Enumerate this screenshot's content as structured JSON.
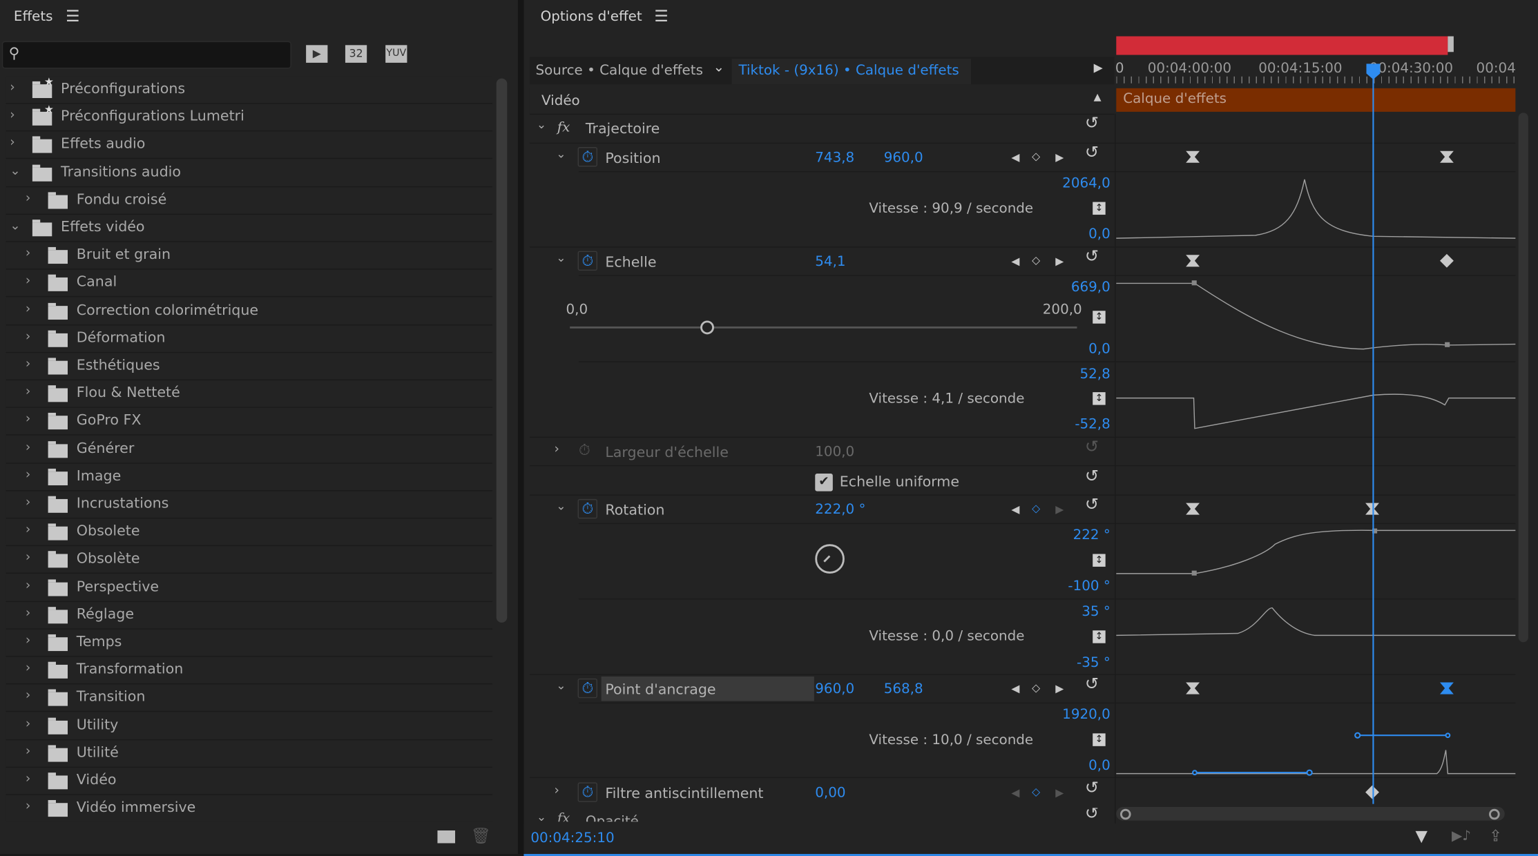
{
  "effects_panel": {
    "title": "Effets",
    "search": {
      "value": "",
      "placeholder": ""
    },
    "toolbar_icons": [
      "accelerated-effects-icon",
      "32-bit-icon",
      "yuv-icon"
    ],
    "toolbar_labels": [
      "",
      "32",
      "YUV"
    ],
    "items": [
      {
        "label": "Préconfigurations",
        "level": 0,
        "expanded": false,
        "icon": "preset-folder"
      },
      {
        "label": "Préconfigurations Lumetri",
        "level": 0,
        "expanded": false,
        "icon": "preset-folder"
      },
      {
        "label": "Effets audio",
        "level": 0,
        "expanded": false,
        "icon": "folder"
      },
      {
        "label": "Transitions audio",
        "level": 0,
        "expanded": true,
        "icon": "folder"
      },
      {
        "label": "Fondu croisé",
        "level": 1,
        "expanded": false,
        "icon": "folder"
      },
      {
        "label": "Effets vidéo",
        "level": 0,
        "expanded": true,
        "icon": "folder"
      },
      {
        "label": "Bruit et grain",
        "level": 1,
        "expanded": false,
        "icon": "folder"
      },
      {
        "label": "Canal",
        "level": 1,
        "expanded": false,
        "icon": "folder"
      },
      {
        "label": "Correction colorimétrique",
        "level": 1,
        "expanded": false,
        "icon": "folder"
      },
      {
        "label": "Déformation",
        "level": 1,
        "expanded": false,
        "icon": "folder"
      },
      {
        "label": "Esthétiques",
        "level": 1,
        "expanded": false,
        "icon": "folder"
      },
      {
        "label": "Flou & Netteté",
        "level": 1,
        "expanded": false,
        "icon": "folder"
      },
      {
        "label": "GoPro FX",
        "level": 1,
        "expanded": false,
        "icon": "folder"
      },
      {
        "label": "Générer",
        "level": 1,
        "expanded": false,
        "icon": "folder"
      },
      {
        "label": "Image",
        "level": 1,
        "expanded": false,
        "icon": "folder"
      },
      {
        "label": "Incrustations",
        "level": 1,
        "expanded": false,
        "icon": "folder"
      },
      {
        "label": "Obsolete",
        "level": 1,
        "expanded": false,
        "icon": "folder"
      },
      {
        "label": "Obsolète",
        "level": 1,
        "expanded": false,
        "icon": "folder"
      },
      {
        "label": "Perspective",
        "level": 1,
        "expanded": false,
        "icon": "folder"
      },
      {
        "label": "Réglage",
        "level": 1,
        "expanded": false,
        "icon": "folder"
      },
      {
        "label": "Temps",
        "level": 1,
        "expanded": false,
        "icon": "folder"
      },
      {
        "label": "Transformation",
        "level": 1,
        "expanded": false,
        "icon": "folder"
      },
      {
        "label": "Transition",
        "level": 1,
        "expanded": false,
        "icon": "folder"
      },
      {
        "label": "Utility",
        "level": 1,
        "expanded": false,
        "icon": "folder"
      },
      {
        "label": "Utilité",
        "level": 1,
        "expanded": false,
        "icon": "folder"
      },
      {
        "label": "Vidéo",
        "level": 1,
        "expanded": false,
        "icon": "folder"
      },
      {
        "label": "Vidéo immersive",
        "level": 1,
        "expanded": false,
        "icon": "folder"
      }
    ]
  },
  "effect_controls": {
    "title": "Options d'effet",
    "source": "Source • Calque d'effets",
    "sequence": "Tiktok - (9x16) • Calque d'effets",
    "section": "Vidéo",
    "effect_name": "Trajectoire",
    "position": {
      "label": "Position",
      "x": "743,8",
      "y": "960,0",
      "max": "2064,0",
      "min": "0,0",
      "speed": "Vitesse : 90,9 / seconde"
    },
    "scale": {
      "label": "Echelle",
      "value": "54,1",
      "max": "669,0",
      "min": "0,0",
      "slider_min": "0,0",
      "slider_max": "200,0",
      "slider_value": 54.1,
      "speed_max": "52,8",
      "speed_min": "-52,8",
      "speed": "Vitesse : 4,1 / seconde"
    },
    "scale_width": {
      "label": "Largeur d'échelle",
      "value": "100,0"
    },
    "uniform_scale": {
      "label": "Echelle uniforme",
      "checked": true
    },
    "rotation": {
      "label": "Rotation",
      "value": "222,0 °",
      "max": "222 °",
      "min": "-100 °",
      "speed_max": "35 °",
      "speed_min": "-35 °",
      "speed": "Vitesse : 0,0 / seconde"
    },
    "anchor": {
      "label": "Point d'ancrage",
      "x": "960,0",
      "y": "568,8",
      "max": "1920,0",
      "min": "0,0",
      "speed": "Vitesse : 10,0 / seconde"
    },
    "flicker": {
      "label": "Filtre antiscintillement",
      "value": "0,00"
    },
    "opacity": {
      "label": "Opacité"
    },
    "timecode": "00:04:25:10"
  },
  "timeline": {
    "ruler": [
      "0",
      "00:04:00:00",
      "00:04:15:00",
      "00:04:30:00",
      "00:04"
    ],
    "clip_label": "Calque d'effets",
    "colors": {
      "work_area": "#d22c38",
      "clip": "#7a2d00",
      "playhead": "#2e8cf0"
    }
  }
}
